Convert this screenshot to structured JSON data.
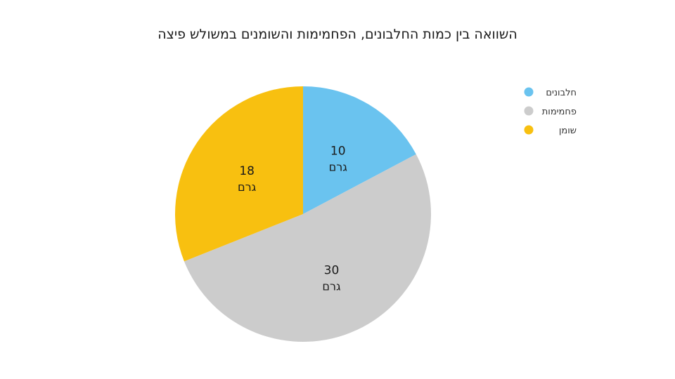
{
  "chart_data": {
    "type": "pie",
    "title": "השוואה בין כמות החלבונים, הפחמימות והשומנים במשולש פיצה",
    "unit": "גרם",
    "categories": [
      "חלבונים",
      "פחמימות",
      "שומן"
    ],
    "values": [
      10,
      30,
      18
    ],
    "colors": [
      "#6ac3ef",
      "#cccccc",
      "#f8c010"
    ],
    "legend_position": "top-right"
  }
}
